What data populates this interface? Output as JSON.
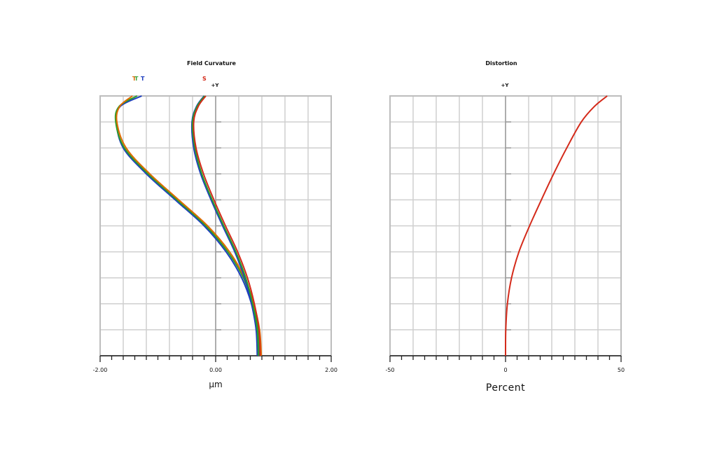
{
  "chart_data": [
    {
      "type": "line",
      "title": "Field Curvature",
      "xlabel": "µm",
      "field_label": "+Y",
      "xlim": [
        -2.0,
        2.0
      ],
      "ylim": [
        0,
        1
      ],
      "x_tick_labels": [
        "-2.00",
        "0.00",
        "2.00"
      ],
      "legend": [
        {
          "text": "T",
          "color": "#e06a00"
        },
        {
          "text": "T",
          "color": "#2a9d2a"
        },
        {
          "text": "T",
          "color": "#1f3fbf"
        },
        {
          "text": "S",
          "color": "#d42a1a"
        }
      ],
      "series": [
        {
          "color": "#1f3fbf",
          "x": [
            0.75,
            0.72,
            0.62,
            0.45,
            0.18,
            -0.2,
            -0.7,
            -1.2,
            -1.6,
            -1.72,
            -1.65,
            -1.28
          ],
          "y": [
            0.0,
            0.1,
            0.2,
            0.3,
            0.4,
            0.5,
            0.6,
            0.7,
            0.8,
            0.9,
            0.96,
            1.0
          ]
        },
        {
          "color": "#2a9d2a",
          "x": [
            0.77,
            0.74,
            0.64,
            0.48,
            0.21,
            -0.17,
            -0.67,
            -1.17,
            -1.58,
            -1.73,
            -1.67,
            -1.36
          ],
          "y": [
            0.0,
            0.1,
            0.2,
            0.3,
            0.4,
            0.5,
            0.6,
            0.7,
            0.8,
            0.9,
            0.96,
            1.0
          ]
        },
        {
          "color": "#e06a00",
          "x": [
            0.79,
            0.76,
            0.66,
            0.5,
            0.24,
            -0.14,
            -0.64,
            -1.14,
            -1.55,
            -1.71,
            -1.66,
            -1.44
          ],
          "y": [
            0.0,
            0.1,
            0.2,
            0.3,
            0.4,
            0.5,
            0.6,
            0.7,
            0.8,
            0.9,
            0.96,
            1.0
          ]
        },
        {
          "color": "#1f3fbf",
          "x": [
            0.72,
            0.7,
            0.62,
            0.5,
            0.33,
            0.12,
            -0.08,
            -0.26,
            -0.38,
            -0.41,
            -0.33,
            -0.2
          ],
          "y": [
            0.0,
            0.1,
            0.2,
            0.3,
            0.4,
            0.5,
            0.6,
            0.7,
            0.8,
            0.9,
            0.96,
            1.0
          ]
        },
        {
          "color": "#2a9d2a",
          "x": [
            0.74,
            0.72,
            0.64,
            0.52,
            0.35,
            0.14,
            -0.06,
            -0.24,
            -0.36,
            -0.4,
            -0.32,
            -0.19
          ],
          "y": [
            0.0,
            0.1,
            0.2,
            0.3,
            0.4,
            0.5,
            0.6,
            0.7,
            0.8,
            0.9,
            0.96,
            1.0
          ]
        },
        {
          "color": "#d42a1a",
          "x": [
            0.77,
            0.75,
            0.67,
            0.55,
            0.38,
            0.17,
            -0.03,
            -0.21,
            -0.34,
            -0.38,
            -0.3,
            -0.17
          ],
          "y": [
            0.0,
            0.1,
            0.2,
            0.3,
            0.4,
            0.5,
            0.6,
            0.7,
            0.8,
            0.9,
            0.96,
            1.0
          ]
        }
      ]
    },
    {
      "type": "line",
      "title": "Distortion",
      "xlabel": "Percent",
      "field_label": "+Y",
      "xlim": [
        -50,
        50
      ],
      "ylim": [
        0,
        1
      ],
      "x_tick_labels": [
        "-50",
        "0",
        "50"
      ],
      "series": [
        {
          "color": "#d42a1a",
          "x": [
            0,
            0.1,
            0.8,
            2.6,
            5.8,
            10.4,
            15.5,
            20.8,
            26.5,
            32.8,
            38.5,
            44.0
          ],
          "y": [
            0.0,
            0.1,
            0.2,
            0.3,
            0.4,
            0.5,
            0.6,
            0.7,
            0.8,
            0.9,
            0.96,
            1.0
          ]
        }
      ]
    }
  ]
}
